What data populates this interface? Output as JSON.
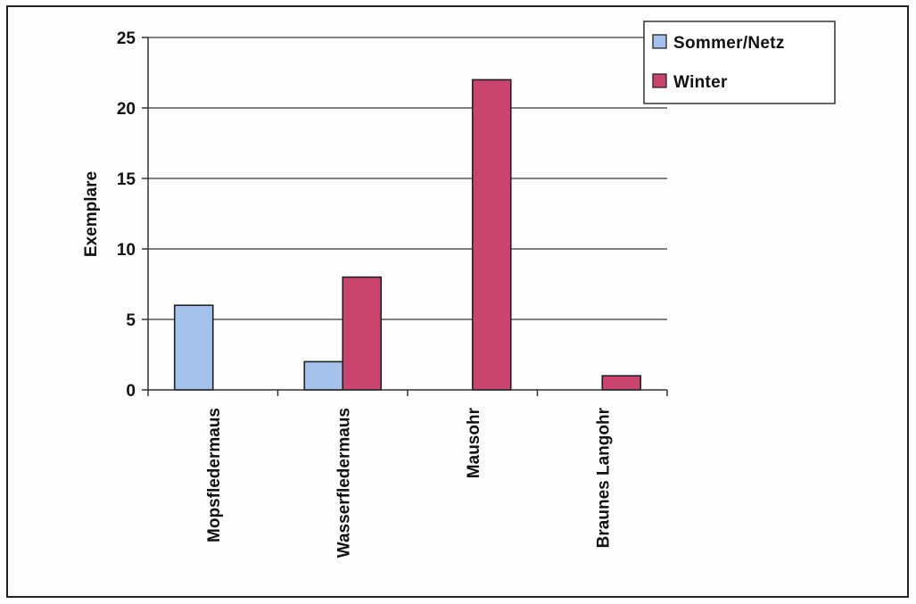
{
  "chart_data": {
    "type": "bar",
    "title": "",
    "xlabel": "",
    "ylabel": "Exemplare",
    "ylim": [
      0,
      25
    ],
    "yticks": [
      0,
      5,
      10,
      15,
      20,
      25
    ],
    "grid": true,
    "legend_position": "top-right",
    "categories": [
      "Mopsfledermaus",
      "Wasserfledermaus",
      "Mausohr",
      "Braunes Langohr"
    ],
    "series": [
      {
        "name": "Sommer/Netz",
        "color": "#a4c2ec",
        "values": [
          6,
          2,
          0,
          0
        ]
      },
      {
        "name": "Winter",
        "color": "#c9456f",
        "values": [
          0,
          8,
          22,
          1
        ]
      }
    ]
  }
}
